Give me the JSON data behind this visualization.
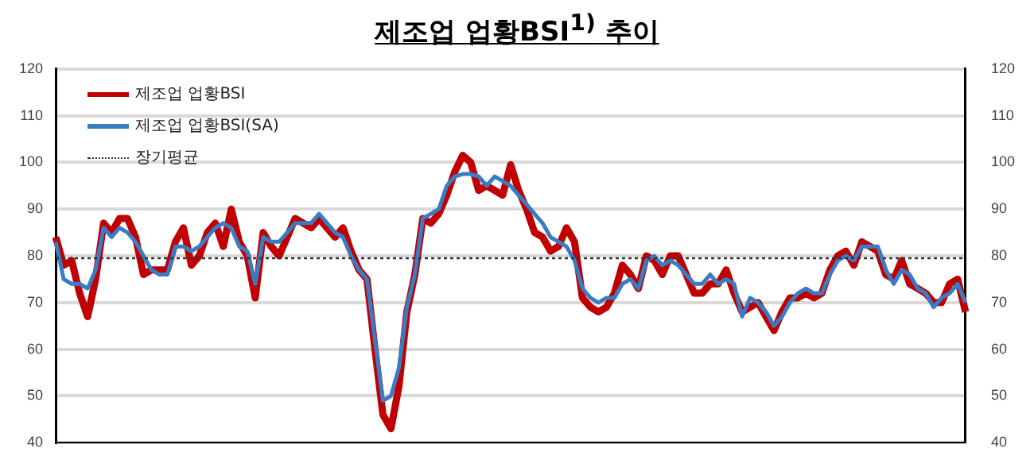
{
  "chart_data": {
    "type": "line",
    "title": "제조업 업황BSI$^{1)}$ 추이",
    "categories": [
      null,
      null,
      null,
      null,
      null,
      null,
      null,
      null,
      null,
      null,
      null,
      null,
      null,
      null,
      null,
      null,
      null,
      null,
      null,
      null,
      null,
      null,
      null,
      null,
      null,
      null,
      null,
      null,
      null,
      null,
      null,
      null,
      null,
      null,
      null,
      null,
      null,
      null,
      null,
      null,
      null,
      null,
      null,
      null,
      null,
      null,
      null,
      null,
      null,
      null,
      null,
      null,
      null,
      null,
      null,
      null,
      null,
      null,
      null,
      null,
      null,
      null,
      null,
      null,
      null,
      null,
      null,
      null,
      null,
      null,
      null,
      null,
      null,
      null,
      null,
      null,
      null,
      null,
      null,
      null,
      null,
      null,
      null,
      null,
      null,
      null,
      null,
      null,
      null,
      null,
      null,
      null,
      null,
      null,
      null,
      null,
      null,
      null,
      null,
      null,
      null,
      null,
      null,
      null,
      null,
      null,
      null,
      null,
      null,
      null,
      null,
      null,
      null,
      null,
      null
    ],
    "series": [
      {
        "name": "제조업 업황BSI",
        "color": "#c00000",
        "values": [
          84,
          78,
          79,
          72,
          67,
          75,
          87,
          85,
          88,
          88,
          84,
          76,
          77,
          77,
          77,
          83,
          86,
          78,
          80,
          85,
          87,
          82,
          90,
          83,
          80,
          71,
          85,
          82,
          80,
          84,
          88,
          87,
          86,
          88,
          86,
          84,
          86,
          81,
          77,
          75,
          60,
          46,
          43,
          52,
          68,
          76,
          88,
          87,
          89,
          93,
          98,
          101.5,
          100,
          94,
          95,
          94,
          93,
          99.5,
          94,
          90,
          85,
          84,
          81,
          82,
          86,
          83,
          71,
          69,
          68,
          69,
          72,
          78,
          76,
          73,
          80,
          79,
          76,
          80,
          80,
          76,
          72,
          72,
          74,
          74,
          77,
          72,
          68,
          69,
          70,
          67,
          64,
          68,
          71,
          71,
          72,
          71,
          72,
          77,
          80,
          81,
          78,
          83,
          82,
          81,
          76,
          75,
          79,
          74,
          73,
          72,
          70,
          70,
          74,
          75,
          68
        ]
      },
      {
        "name": "제조업 업황BSI(SA)",
        "color": "#3a7cc4",
        "values": [
          83,
          75,
          74,
          74,
          73,
          77,
          86,
          84,
          86,
          85,
          83,
          80,
          77,
          76,
          76,
          82,
          82,
          81,
          82,
          84,
          86,
          87,
          86,
          82,
          81,
          74,
          84,
          83,
          83,
          85,
          87,
          87,
          87,
          89,
          87,
          85,
          84,
          80,
          77,
          75,
          62,
          49,
          50,
          56,
          69,
          76,
          88,
          89,
          90,
          95,
          97,
          97.5,
          97.5,
          97,
          95,
          97,
          96,
          95,
          93,
          91,
          89,
          87,
          84,
          83,
          82,
          79,
          73,
          71,
          70,
          71,
          71,
          74,
          75,
          73,
          79,
          80,
          78,
          79,
          78,
          76,
          74,
          74,
          76,
          74,
          75,
          74,
          67,
          71,
          70,
          68,
          65,
          67,
          70,
          72,
          73,
          72,
          72,
          76,
          79,
          80,
          79,
          82,
          82,
          82,
          77,
          74,
          77,
          76,
          73,
          72,
          69,
          71,
          72,
          74,
          70
        ]
      }
    ],
    "ref_lines": [
      {
        "axis": "y",
        "value": 79.5,
        "label": "장기평균",
        "color": "#333333",
        "line_style": "dotted"
      }
    ],
    "ylim": [
      40,
      120
    ],
    "yticks": [
      40,
      50,
      60,
      70,
      80,
      90,
      100,
      110,
      120
    ],
    "y2lim": [
      40,
      120
    ],
    "y2ticks": [
      40,
      50,
      60,
      70,
      80,
      90,
      100,
      110,
      120
    ],
    "tick_labels": "y",
    "grid": "y",
    "legend": "top left",
    "marker": "none",
    "line_style": "solid"
  }
}
